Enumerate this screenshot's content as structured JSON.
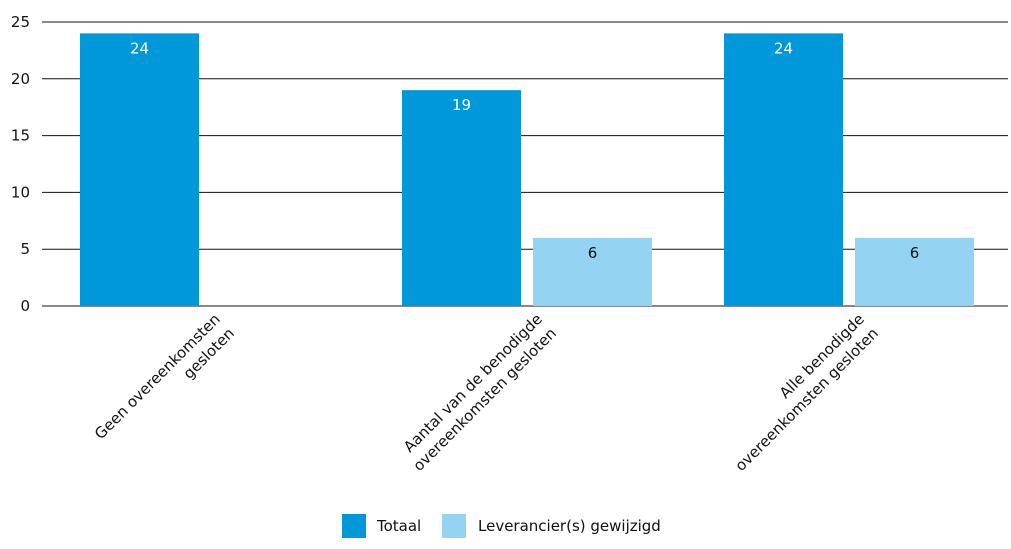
{
  "chart_data": {
    "type": "bar",
    "categories": [
      [
        "Geen overeenkomsten",
        "gesloten"
      ],
      [
        "Aantal van de benodigde",
        "overeenkomsten gesloten"
      ],
      [
        "Alle benodigde",
        "overeenkomsten gesloten"
      ]
    ],
    "series": [
      {
        "name": "Totaal",
        "values": [
          24,
          19,
          24
        ],
        "color": "#0098d8",
        "label_color": "#ffffff"
      },
      {
        "name": "Leverancier(s) gewijzigd",
        "values": [
          null,
          6,
          6
        ],
        "color": "#95d3f2",
        "label_color": "#111111"
      }
    ],
    "yticks": [
      0,
      5,
      10,
      15,
      20,
      25
    ],
    "ylim": [
      0,
      25
    ],
    "grid": true,
    "legend_position": "bottom"
  }
}
